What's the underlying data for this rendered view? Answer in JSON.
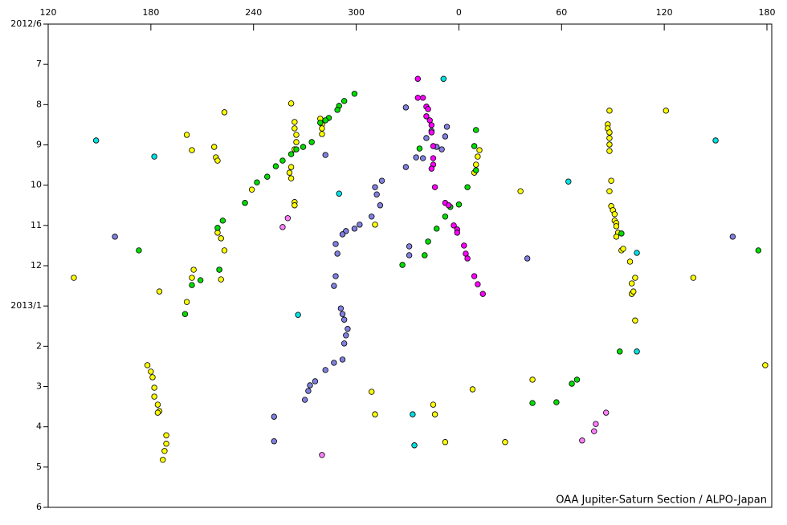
{
  "chart_data": {
    "type": "scatter",
    "annotation": "OAA Jupiter-Saturn Section / ALPO-Japan",
    "xlim": [
      120,
      540
    ],
    "xticks": [
      120,
      180,
      240,
      300,
      {
        "value": 360,
        "label": "0"
      },
      {
        "value": 420,
        "label": "60"
      },
      {
        "value": 480,
        "label": "120"
      },
      {
        "value": 540,
        "label": "180"
      }
    ],
    "ylim": [
      18,
      6
    ],
    "yticks": [
      {
        "value": 6,
        "label": "2012/6"
      },
      7,
      8,
      9,
      10,
      11,
      12,
      {
        "value": 13,
        "label": "2013/1"
      },
      {
        "value": 14,
        "label": "2"
      },
      {
        "value": 15,
        "label": "3"
      },
      {
        "value": 16,
        "label": "4"
      },
      {
        "value": 17,
        "label": "5"
      },
      {
        "value": 18,
        "label": "6"
      }
    ],
    "series": [
      {
        "color": "#ffff00",
        "x": [
          223,
          201,
          204,
          217,
          218,
          219,
          219,
          221,
          223,
          205,
          220,
          221,
          201,
          185,
          135,
          204,
          178,
          180,
          181,
          182,
          182,
          184,
          185,
          184,
          189,
          189,
          188,
          187,
          262,
          264,
          264,
          265,
          265,
          264,
          262,
          261,
          262,
          264,
          264,
          279,
          280,
          280,
          280,
          239,
          311,
          309,
          311,
          345,
          346,
          352,
          368,
          387,
          403,
          396,
          369,
          370,
          371,
          372,
          448,
          447,
          447,
          448,
          448,
          448,
          448,
          449,
          448,
          449,
          450,
          451,
          451,
          452,
          452,
          453,
          452,
          455,
          456,
          460,
          461,
          461,
          462,
          463,
          463,
          481,
          497,
          539
        ],
        "values": [
          8.19,
          8.75,
          9.13,
          9.05,
          9.31,
          9.39,
          11.18,
          11.32,
          11.62,
          12.1,
          12.1,
          12.34,
          12.9,
          12.64,
          12.3,
          12.3,
          14.47,
          14.63,
          14.77,
          15.03,
          15.25,
          15.45,
          15.61,
          15.65,
          16.21,
          16.42,
          16.6,
          16.82,
          7.97,
          8.43,
          8.59,
          8.75,
          8.93,
          9.11,
          9.55,
          9.69,
          9.83,
          10.42,
          10.5,
          8.35,
          8.49,
          8.59,
          8.73,
          10.11,
          10.98,
          15.13,
          15.69,
          15.45,
          15.69,
          16.38,
          15.07,
          16.38,
          14.83,
          10.15,
          9.69,
          9.49,
          9.29,
          9.13,
          8.15,
          8.49,
          8.59,
          8.69,
          8.83,
          8.99,
          9.15,
          9.89,
          10.15,
          10.52,
          10.62,
          10.72,
          10.88,
          10.94,
          11.02,
          11.18,
          11.28,
          11.62,
          11.58,
          11.9,
          12.44,
          12.7,
          12.64,
          12.3,
          13.36,
          8.15,
          12.3,
          14.47
        ]
      },
      {
        "color": "#00dd00",
        "x": [
          299,
          293,
          290,
          289,
          284,
          282,
          279,
          274,
          269,
          265,
          262,
          257,
          253,
          248,
          242,
          235,
          222,
          219,
          220,
          209,
          204,
          200,
          173,
          337,
          342,
          340,
          327,
          347,
          352,
          355,
          360,
          365,
          370,
          370,
          369,
          403,
          417,
          426,
          429,
          455,
          454,
          535
        ],
        "values": [
          7.73,
          7.91,
          8.03,
          8.13,
          8.33,
          8.39,
          8.45,
          8.93,
          9.05,
          9.11,
          9.23,
          9.39,
          9.53,
          9.79,
          9.93,
          10.44,
          10.88,
          11.06,
          12.1,
          12.36,
          12.48,
          13.2,
          11.62,
          9.09,
          11.4,
          11.74,
          11.98,
          11.08,
          10.78,
          10.54,
          10.48,
          10.05,
          9.63,
          8.63,
          9.03,
          15.41,
          15.39,
          14.93,
          14.83,
          11.2,
          14.13,
          11.62
        ]
      },
      {
        "color": "#8080e0",
        "x": [
          329,
          344,
          341,
          335,
          339,
          347,
          350,
          352,
          353,
          329,
          315,
          311,
          312,
          314,
          309,
          302,
          299,
          294,
          292,
          288,
          289,
          331,
          331,
          288,
          287,
          291,
          292,
          293,
          295,
          294,
          293,
          292,
          287,
          282,
          276,
          273,
          272,
          270,
          159,
          282,
          400,
          520,
          252,
          252
        ],
        "values": [
          8.07,
          8.65,
          8.83,
          9.31,
          9.33,
          9.05,
          9.11,
          8.79,
          8.55,
          9.55,
          9.89,
          10.05,
          10.23,
          10.5,
          10.78,
          10.98,
          11.08,
          11.14,
          11.22,
          11.46,
          11.7,
          11.52,
          11.74,
          12.26,
          12.5,
          13.06,
          13.2,
          13.34,
          13.57,
          13.73,
          13.93,
          14.33,
          14.41,
          14.59,
          14.87,
          14.97,
          15.11,
          15.33,
          11.28,
          9.25,
          11.82,
          11.28,
          15.75,
          16.36
        ]
      },
      {
        "color": "#ff00ff",
        "x": [
          336,
          336,
          339,
          341,
          342,
          341,
          343,
          344,
          344,
          345,
          345,
          345,
          344,
          346,
          352,
          354,
          357,
          359,
          359,
          363,
          364,
          365,
          369,
          371,
          374
        ],
        "values": [
          7.36,
          7.83,
          7.83,
          8.05,
          8.11,
          8.29,
          8.39,
          8.51,
          8.69,
          9.03,
          9.33,
          9.49,
          9.59,
          10.05,
          10.44,
          10.5,
          11.0,
          11.1,
          11.18,
          11.5,
          11.7,
          11.82,
          12.26,
          12.46,
          12.7
        ]
      },
      {
        "color": "#00e0e0",
        "x": [
          148,
          182,
          290,
          351,
          424,
          510,
          464,
          266,
          333,
          334,
          464
        ],
        "values": [
          8.89,
          9.29,
          10.21,
          7.36,
          9.91,
          8.89,
          11.68,
          13.22,
          15.69,
          16.46,
          14.13
        ]
      },
      {
        "color": "#ff80ff",
        "x": [
          260,
          257,
          280,
          440,
          439,
          432,
          446
        ],
        "values": [
          10.82,
          11.04,
          16.7,
          15.93,
          16.11,
          16.34,
          15.65
        ]
      }
    ]
  }
}
